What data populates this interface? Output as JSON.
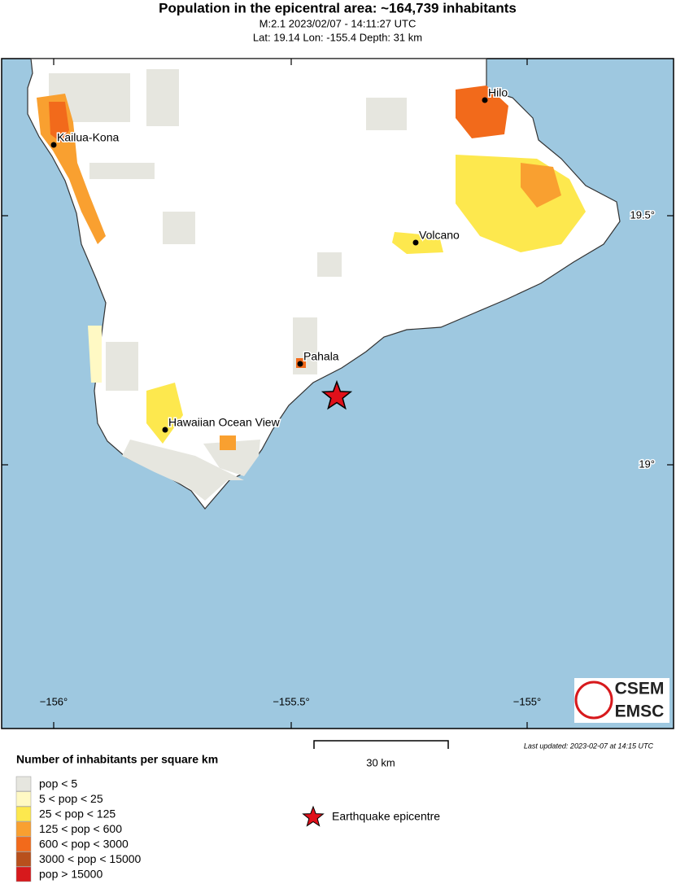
{
  "header": {
    "title": "Population in the epicentral area: ~164,739 inhabitants",
    "line1": "M:2.1 2023/02/07 - 14:11:27 UTC",
    "line2": "Lat: 19.14 Lon: -155.4 Depth: 31 km"
  },
  "map": {
    "lon_labels": [
      "−156°",
      "−155.5°",
      "−155°"
    ],
    "lat_labels": [
      "19.5°",
      "19°"
    ],
    "places": [
      "Hilo",
      "Kailua-Kona",
      "Volcano",
      "Pahala",
      "Hawaiian Ocean View"
    ],
    "logo": [
      "CSEM",
      "EMSC"
    ]
  },
  "scale_label": "30 km",
  "updated": "Last updated: 2023-02-07 at 14:15 UTC",
  "legend": {
    "title": "Number of inhabitants per square km",
    "items": [
      {
        "label": "pop < 5",
        "color": "#e6e6df"
      },
      {
        "label": "5 < pop < 25",
        "color": "#fff9c4"
      },
      {
        "label": "25 < pop < 125",
        "color": "#fde84e"
      },
      {
        "label": "125 < pop < 600",
        "color": "#f9a030"
      },
      {
        "label": "600 < pop < 3000",
        "color": "#f26a1b"
      },
      {
        "label": "3000 < pop < 15000",
        "color": "#b8501c"
      },
      {
        "label": "pop > 15000",
        "color": "#d7191c"
      }
    ],
    "epicentre": "Earthquake epicentre"
  }
}
